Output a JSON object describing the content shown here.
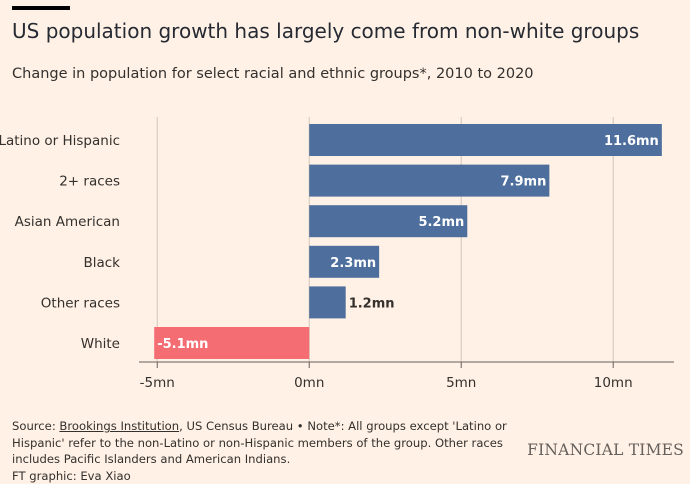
{
  "header": {
    "title": "US population growth has largely come from non-white groups",
    "subtitle": "Change in population for select racial and ethnic groups*, 2010 to 2020"
  },
  "chart_data": {
    "type": "bar",
    "orientation": "horizontal",
    "categories": [
      "Latino or Hispanic",
      "2+ races",
      "Asian American",
      "Black",
      "Other races",
      "White"
    ],
    "values": [
      11.6,
      7.9,
      5.2,
      2.3,
      1.2,
      -5.1
    ],
    "value_labels": [
      "11.6mn",
      "7.9mn",
      "5.2mn",
      "2.3mn",
      "1.2mn",
      "-5.1mn"
    ],
    "unit": "mn",
    "xlim": [
      -5.6,
      12
    ],
    "xticks": [
      -5,
      0,
      5,
      10
    ],
    "xtick_labels": [
      "-5mn",
      "0mn",
      "5mn",
      "10mn"
    ],
    "grid": true,
    "colors": {
      "positive": "#4e6f9e",
      "negative": "#f36d73"
    }
  },
  "footer": {
    "source_prefix": "Source: ",
    "source_link": "Brookings Institution",
    "source_rest": ", US Census Bureau • Note*: All groups except 'Latino or Hispanic' refer to the non-Latino or non-Hispanic members of the group. Other races includes Pacific Islanders and American Indians.",
    "credit": "FT graphic: Eva Xiao",
    "brand": "FINANCIAL TIMES"
  }
}
